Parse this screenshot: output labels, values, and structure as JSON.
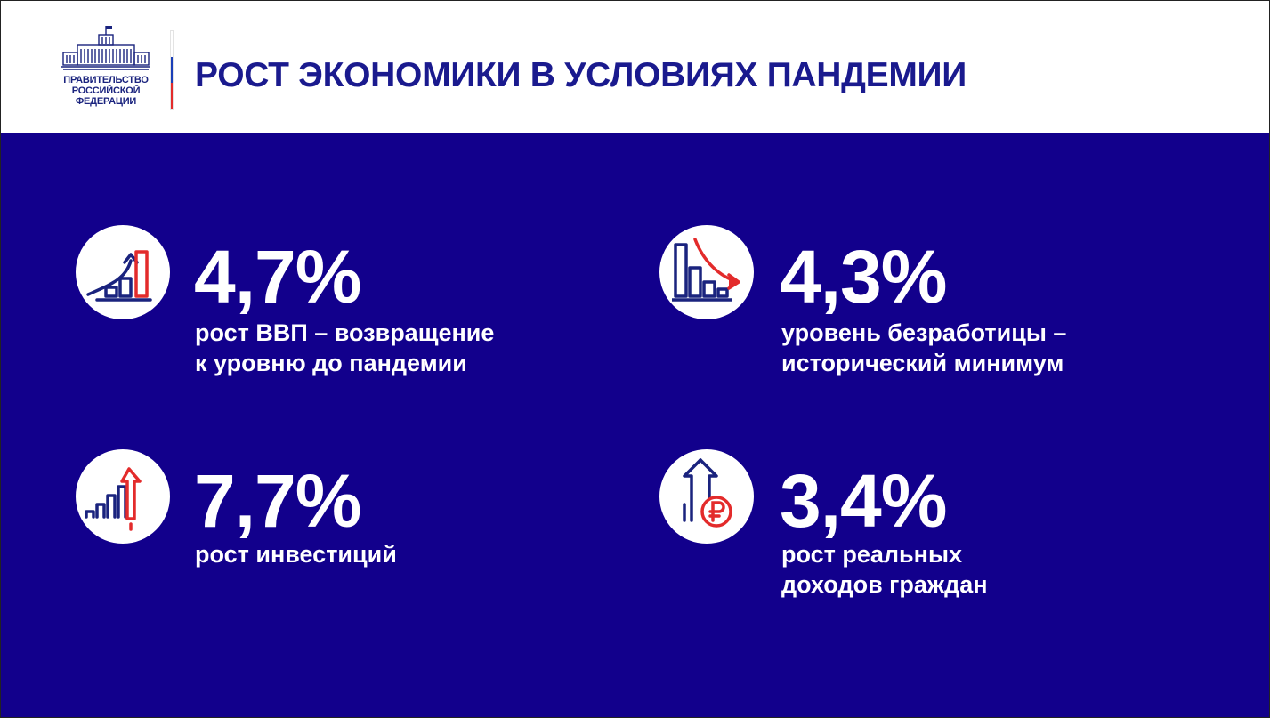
{
  "header": {
    "logo": {
      "icon": "government-building-icon",
      "lines": [
        "ПРАВИТЕЛЬСТВО",
        "РОССИЙСКОЙ",
        "ФЕДЕРАЦИИ"
      ]
    },
    "title": "РОСТ ЭКОНОМИКИ В УСЛОВИЯХ ПАНДЕМИИ"
  },
  "colors": {
    "panel_background": "#12008c",
    "title_text": "#1a1a8e",
    "accent_red": "#e32b2b",
    "icon_navy": "#1a237e"
  },
  "stats": [
    {
      "icon": "gdp-growth-chart-icon",
      "value": "4,7%",
      "description_lines": [
        "рост ВВП – возвращение",
        "к уровню до пандемии"
      ]
    },
    {
      "icon": "unemployment-decline-chart-icon",
      "value": "4,3%",
      "description_lines": [
        "уровень безработицы –",
        "исторический минимум"
      ]
    },
    {
      "icon": "investment-growth-arrow-icon",
      "value": "7,7%",
      "description_lines": [
        "рост инвестиций"
      ]
    },
    {
      "icon": "ruble-income-growth-icon",
      "value": "3,4%",
      "description_lines": [
        "рост реальных",
        "доходов граждан"
      ]
    }
  ]
}
